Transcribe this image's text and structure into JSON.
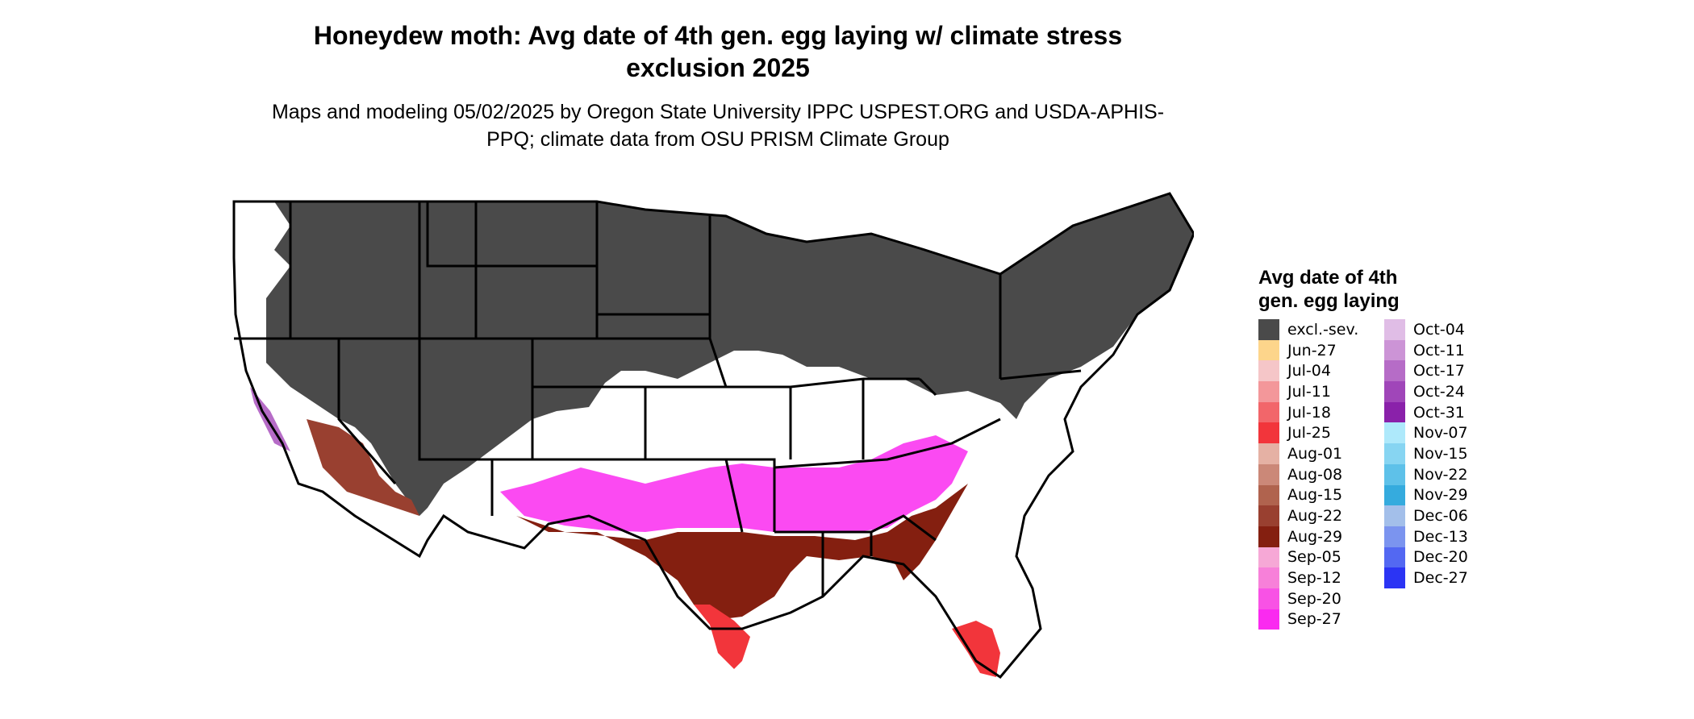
{
  "title": "Honeydew moth: Avg date of 4th gen. egg laying w/ climate stress exclusion 2025",
  "subtitle": "Maps and modeling 05/02/2025 by Oregon State University IPPC USPEST.ORG and USDA-APHIS-PPQ; climate data from OSU PRISM Climate Group",
  "legend": {
    "title": "Avg date of 4th\ngen. egg laying",
    "items": [
      {
        "label": "excl.-sev.",
        "color": "#4a4a4a"
      },
      {
        "label": "Jun-27",
        "color": "#fdd58b"
      },
      {
        "label": "Jul-04",
        "color": "#f5c6c8"
      },
      {
        "label": "Jul-11",
        "color": "#f3979a"
      },
      {
        "label": "Jul-18",
        "color": "#f2666a"
      },
      {
        "label": "Jul-25",
        "color": "#f2353b"
      },
      {
        "label": "Aug-01",
        "color": "#e5b1a4"
      },
      {
        "label": "Aug-08",
        "color": "#cb8878"
      },
      {
        "label": "Aug-15",
        "color": "#b0634e"
      },
      {
        "label": "Aug-22",
        "color": "#994030"
      },
      {
        "label": "Aug-29",
        "color": "#841f10"
      },
      {
        "label": "Sep-05",
        "color": "#f6a8d6"
      },
      {
        "label": "Sep-12",
        "color": "#f780d9"
      },
      {
        "label": "Sep-20",
        "color": "#f852e5"
      },
      {
        "label": "Sep-27",
        "color": "#fa2af0"
      },
      {
        "label": "Oct-04",
        "color": "#e0bde6"
      },
      {
        "label": "Oct-11",
        "color": "#cc94d6"
      },
      {
        "label": "Oct-17",
        "color": "#b66cc7"
      },
      {
        "label": "Oct-24",
        "color": "#a046b9"
      },
      {
        "label": "Oct-31",
        "color": "#8a21aa"
      },
      {
        "label": "Nov-07",
        "color": "#aee9fb"
      },
      {
        "label": "Nov-15",
        "color": "#87d5f2"
      },
      {
        "label": "Nov-22",
        "color": "#5ec1e9"
      },
      {
        "label": "Nov-29",
        "color": "#35abde"
      },
      {
        "label": "Dec-06",
        "color": "#a3bfea"
      },
      {
        "label": "Dec-13",
        "color": "#7b94ef"
      },
      {
        "label": "Dec-20",
        "color": "#5368f2"
      },
      {
        "label": "Dec-27",
        "color": "#2b34f4"
      }
    ]
  },
  "colors": {
    "excluded": "#4a4a4a",
    "background": "#ffffff",
    "border": "#000000"
  }
}
